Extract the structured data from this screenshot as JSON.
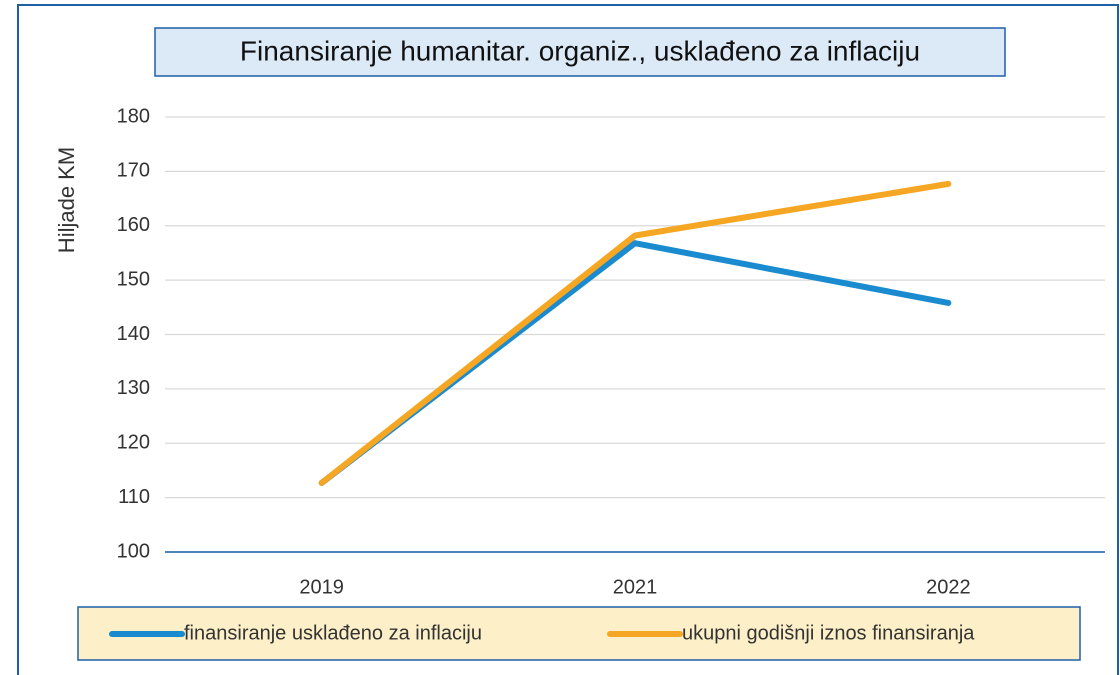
{
  "chart_data": {
    "type": "line",
    "title": "Finansiranje humanitar. organiz., usklađeno za inflaciju",
    "y_label": "Hiljade KM",
    "categories": [
      "2019",
      "2021",
      "2022"
    ],
    "series": [
      {
        "name": "finansiranje usklađeno za inflaciju",
        "color": "#1a8bcf",
        "values": [
          112.7,
          156.8,
          145.8
        ]
      },
      {
        "name": "ukupni godišnji iznos finansiranja",
        "color": "#f5a623",
        "values": [
          112.7,
          158.2,
          167.7
        ]
      }
    ],
    "ylim": [
      100,
      180
    ],
    "yticks": [
      100,
      110,
      120,
      130,
      140,
      150,
      160,
      170,
      180
    ],
    "grid": true
  }
}
